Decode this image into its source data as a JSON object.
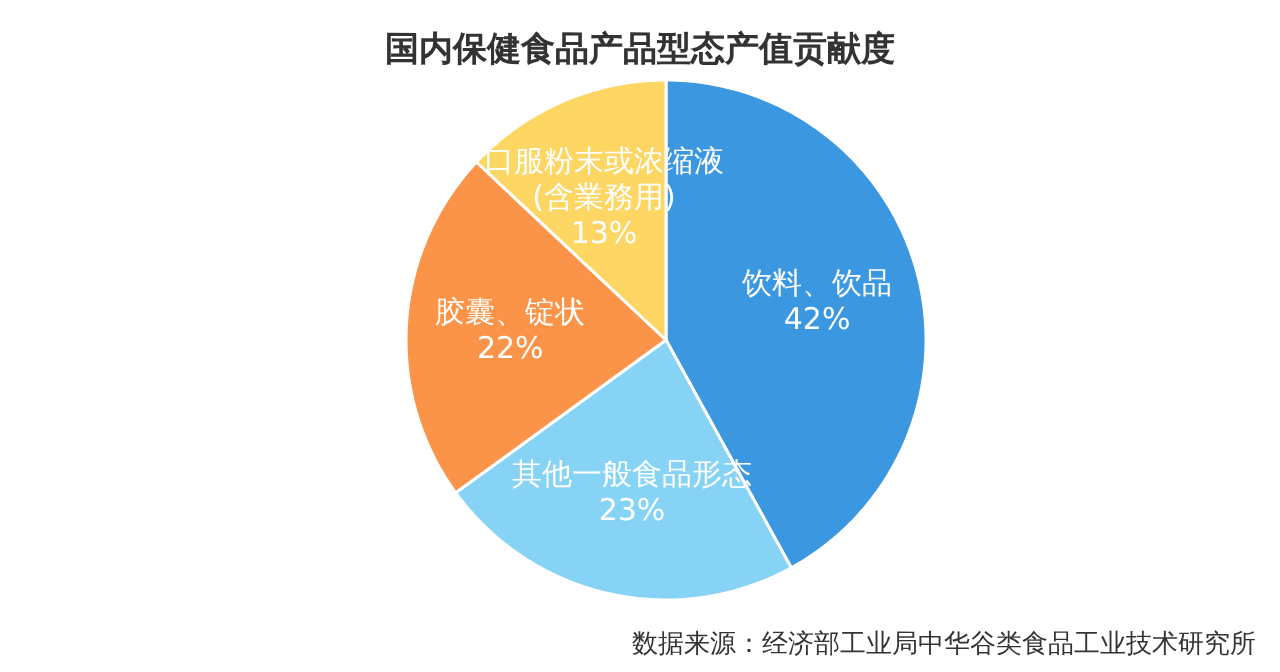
{
  "chart_data": {
    "type": "pie",
    "title": "国内保健食品产品型态产值贡献度",
    "categories": [
      "饮料、饮品",
      "其他一般食品形态",
      "胶囊、锭状",
      "口服粉末或浓缩液\n(含業務用)"
    ],
    "values": [
      42,
      23,
      22,
      13
    ],
    "value_labels": [
      "42%",
      "23%",
      "22%",
      "13%"
    ],
    "colors": [
      "#3a97e0",
      "#86d3f5",
      "#fb9448",
      "#fdd664"
    ],
    "annotations": [
      "数据来源：经济部工业局中华谷类食品工业技术研究所"
    ]
  }
}
